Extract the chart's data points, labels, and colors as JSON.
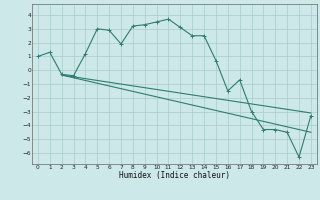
{
  "xlabel": "Humidex (Indice chaleur)",
  "bg_color": "#cce8e8",
  "grid_color": "#aacccc",
  "line_color": "#2e7d6e",
  "xlim": [
    -0.5,
    23.5
  ],
  "ylim": [
    -6.8,
    4.8
  ],
  "xticks": [
    0,
    1,
    2,
    3,
    4,
    5,
    6,
    7,
    8,
    9,
    10,
    11,
    12,
    13,
    14,
    15,
    16,
    17,
    18,
    19,
    20,
    21,
    22,
    23
  ],
  "yticks": [
    -6,
    -5,
    -4,
    -3,
    -2,
    -1,
    0,
    1,
    2,
    3,
    4
  ],
  "series1_x": [
    0,
    1,
    2,
    3,
    4,
    5,
    6,
    7,
    8,
    9,
    10,
    11,
    12,
    13,
    14,
    15,
    16,
    17,
    18,
    19,
    20,
    21,
    22,
    23
  ],
  "series1_y": [
    1.0,
    1.3,
    -0.3,
    -0.4,
    1.2,
    3.0,
    2.9,
    1.9,
    3.2,
    3.3,
    3.5,
    3.7,
    3.1,
    2.5,
    2.5,
    0.7,
    -1.5,
    -0.7,
    -3.0,
    -4.3,
    -4.3,
    -4.5,
    -6.3,
    -3.3
  ],
  "trend1_x": [
    2,
    23
  ],
  "trend1_y": [
    -0.35,
    -4.5
  ],
  "trend2_x": [
    2,
    23
  ],
  "trend2_y": [
    -0.35,
    -3.1
  ]
}
